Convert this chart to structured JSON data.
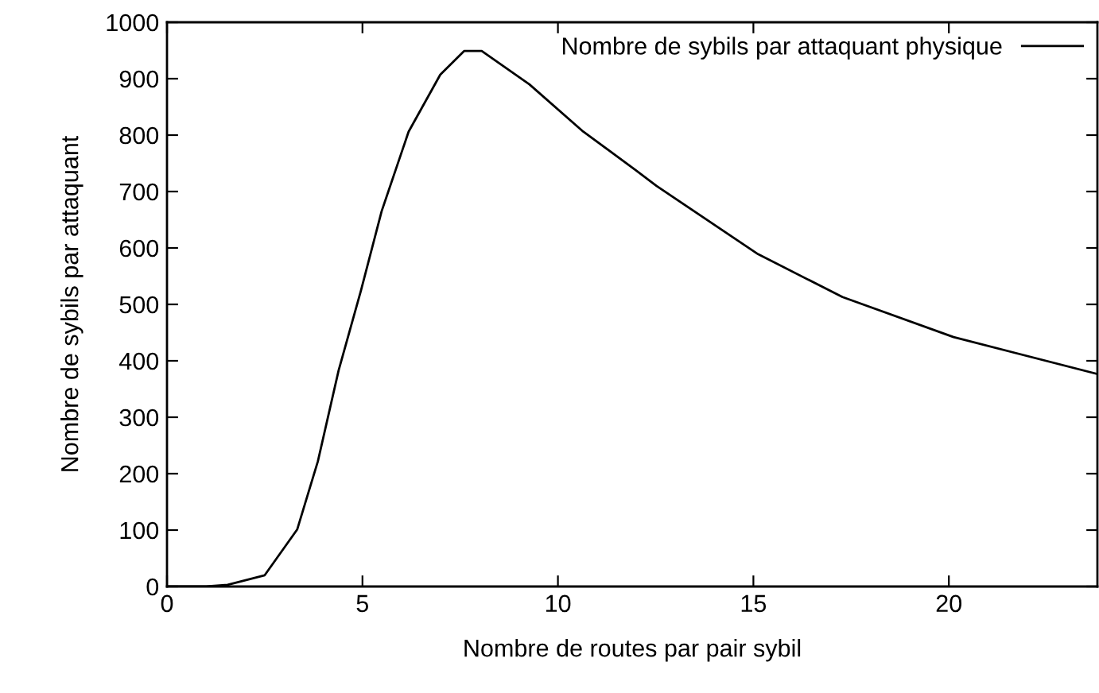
{
  "chart_data": {
    "type": "line",
    "xlabel": "Nombre de routes par pair sybil",
    "ylabel": "Nombre de sybils par attaquant",
    "x": [
      0,
      1,
      1.55,
      2.5,
      3.33,
      3.86,
      4.39,
      4.96,
      5.49,
      6.18,
      6.99,
      7.6,
      8.05,
      9.27,
      10.65,
      11.99,
      12.52,
      15.12,
      17.28,
      20.12,
      23.78
    ],
    "series": [
      {
        "name": "Nombre de sybils par attaquant physique",
        "color": "#000000",
        "values": [
          0,
          0,
          3,
          20,
          101,
          222,
          383,
          524,
          665,
          806,
          907,
          949,
          949,
          890,
          806,
          738,
          710,
          589,
          513,
          442,
          377
        ]
      }
    ],
    "xlim": [
      0,
      23.8
    ],
    "ylim": [
      0,
      1000
    ],
    "xticks": [
      0,
      5,
      10,
      15,
      20
    ],
    "yticks": [
      0,
      100,
      200,
      300,
      400,
      500,
      600,
      700,
      800,
      900,
      1000
    ],
    "grid": false,
    "legend": "top right",
    "marker": "none",
    "line_style": "solid"
  }
}
